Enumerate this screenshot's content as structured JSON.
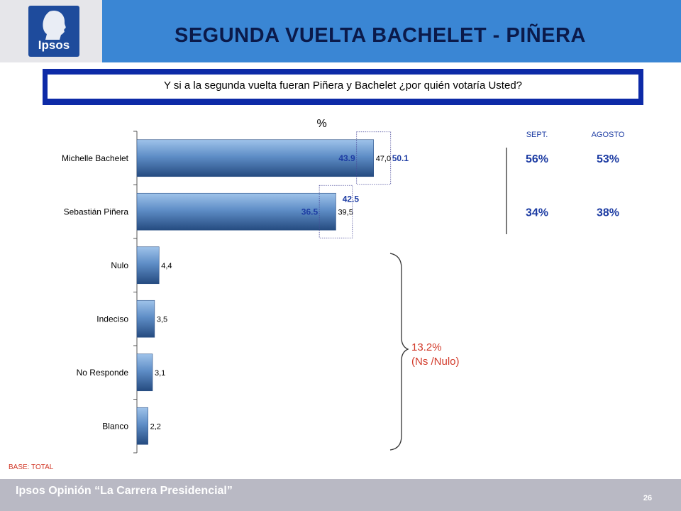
{
  "header": {
    "logo_text": "Ipsos",
    "title": "SEGUNDA VUELTA BACHELET - PIÑERA"
  },
  "question": "Y si a la segunda vuelta fueran Piñera y Bachelet ¿por quién votaría Usted?",
  "chart_data": {
    "type": "bar",
    "orientation": "horizontal",
    "unit_label": "%",
    "categories": [
      "Michelle Bachelet",
      "Sebastián Piñera",
      "Nulo",
      "Indeciso",
      "No Responde",
      "Blanco"
    ],
    "values": [
      47.0,
      39.5,
      4.4,
      3.5,
      3.1,
      2.2
    ],
    "value_labels": [
      "47,0",
      "39,5",
      "4,4",
      "3,5",
      "3,1",
      "2,2"
    ],
    "xlim": [
      0,
      100
    ],
    "ranges": [
      {
        "category": "Michelle Bachelet",
        "low": 43.9,
        "high": 50.1,
        "low_label": "43.9",
        "high_label": "50.1"
      },
      {
        "category": "Sebastián Piñera",
        "low": 36.5,
        "high": 42.5,
        "low_label": "36.5",
        "high_label": "42.5"
      }
    ],
    "comparison": {
      "headers": [
        "SEPT.",
        "AGOSTO"
      ],
      "rows": [
        {
          "category": "Michelle Bachelet",
          "values": [
            "56%",
            "53%"
          ]
        },
        {
          "category": "Sebastián Piñera",
          "values": [
            "34%",
            "38%"
          ]
        }
      ]
    },
    "bracket": {
      "categories": [
        "Nulo",
        "Indeciso",
        "No Responde",
        "Blanco"
      ],
      "total_label": "13.2%",
      "note": "(Ns /Nulo)"
    },
    "colors": {
      "bar_light": "#9fc3ea",
      "bar_mid": "#5f8ec7",
      "bar_dark": "#254b80",
      "highlight": "#1d3ca3",
      "note": "#d23a2a"
    }
  },
  "base_label": "BASE: TOTAL",
  "footer": {
    "title": "Ipsos Opinión “La Carrera Presidencial”",
    "page_number": "26"
  }
}
